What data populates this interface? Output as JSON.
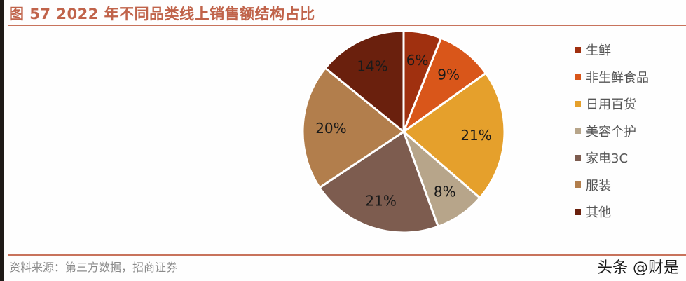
{
  "header": {
    "title": "图 57 2022 年不同品类线上销售额结构占比"
  },
  "footer": {
    "source": "资料来源：第三方数据，招商证券",
    "watermark": "头条 @财是"
  },
  "chart_data": {
    "type": "pie",
    "title": "图 57 2022 年不同品类线上销售额结构占比",
    "categories": [
      "生鲜",
      "非生鲜食品",
      "日用百货",
      "美容个护",
      "家电3C",
      "服装",
      "其他"
    ],
    "values": [
      6,
      9,
      21,
      8,
      21,
      20,
      14
    ],
    "labels": [
      "6%",
      "9%",
      "21%",
      "8%",
      "21%",
      "20%",
      "14%"
    ],
    "colors": [
      "#a0300f",
      "#d9561a",
      "#e5a02c",
      "#b7a58a",
      "#7d5c4f",
      "#b27e4c",
      "#6a200d"
    ],
    "start_angle": "12 o'clock, clockwise",
    "legend_position": "right"
  },
  "legend": {
    "items": [
      {
        "label": "生鲜",
        "color": "#a0300f"
      },
      {
        "label": "非生鲜食品",
        "color": "#d9561a"
      },
      {
        "label": "日用百货",
        "color": "#e5a02c"
      },
      {
        "label": "美容个护",
        "color": "#b7a58a"
      },
      {
        "label": "家电3C",
        "color": "#7d5c4f"
      },
      {
        "label": "服装",
        "color": "#b27e4c"
      },
      {
        "label": "其他",
        "color": "#6a200d"
      }
    ]
  }
}
